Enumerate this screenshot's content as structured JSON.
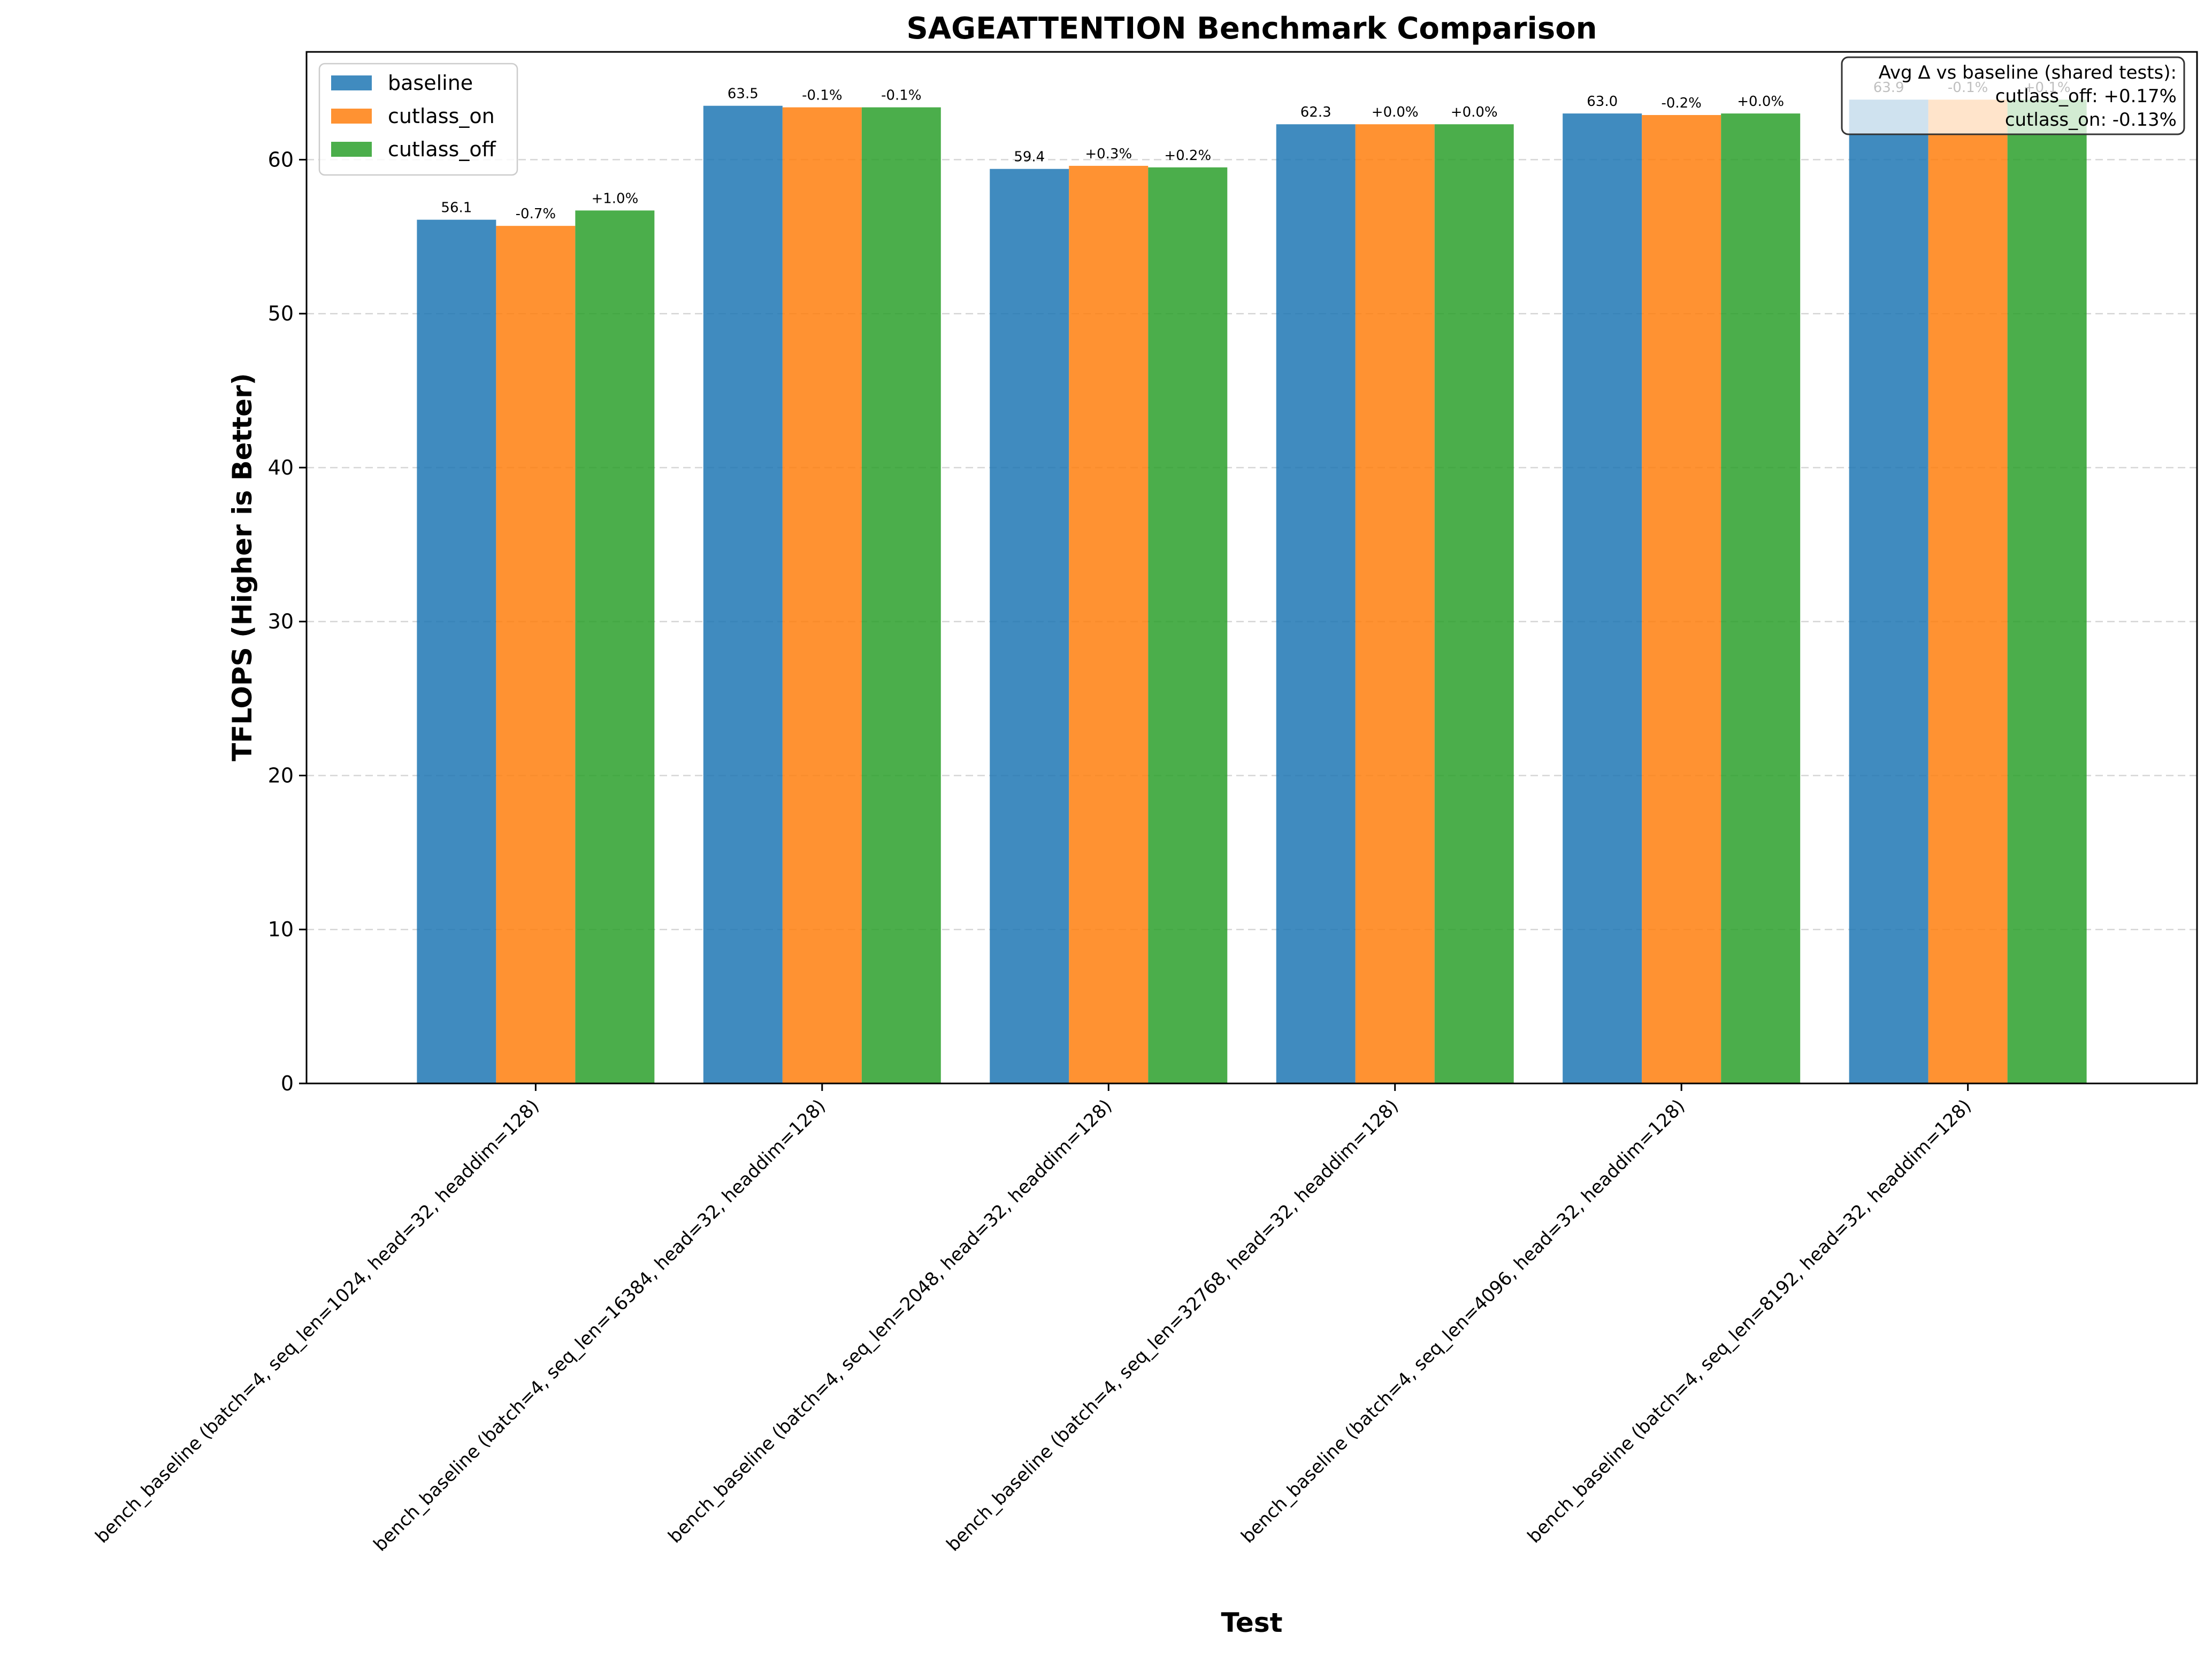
{
  "chart_data": {
    "type": "bar",
    "title": "SAGEATTENTION Benchmark Comparison",
    "xlabel": "Test",
    "ylabel": "TFLOPS (Higher is Better)",
    "ylim": [
      0,
      67
    ],
    "yticks": [
      0,
      10,
      20,
      30,
      40,
      50,
      60
    ],
    "grid": "y dashed",
    "legend_position": "upper-left",
    "categories": [
      "bench_baseline (batch=4, seq_len=1024, head=32, headdim=128)",
      "bench_baseline (batch=4, seq_len=16384, head=32, headdim=128)",
      "bench_baseline (batch=4, seq_len=2048, head=32, headdim=128)",
      "bench_baseline (batch=4, seq_len=32768, head=32, headdim=128)",
      "bench_baseline (batch=4, seq_len=4096, head=32, headdim=128)",
      "bench_baseline (batch=4, seq_len=8192, head=32, headdim=128)"
    ],
    "series": [
      {
        "name": "baseline",
        "color": "#1f77b4",
        "values": [
          56.1,
          63.5,
          59.4,
          62.3,
          63.0,
          63.9
        ],
        "labels": [
          "56.1",
          "63.5",
          "59.4",
          "62.3",
          "63.0",
          "63.9"
        ]
      },
      {
        "name": "cutlass_on",
        "color": "#ff7f0e",
        "values": [
          55.7,
          63.4,
          59.6,
          62.3,
          62.9,
          63.9
        ],
        "labels": [
          "-0.7%",
          "-0.1%",
          "+0.3%",
          "+0.0%",
          "-0.2%",
          "-0.1%"
        ]
      },
      {
        "name": "cutlass_off",
        "color": "#2ca02c",
        "values": [
          56.7,
          63.4,
          59.5,
          62.3,
          63.0,
          63.9
        ],
        "labels": [
          "+1.0%",
          "-0.1%",
          "+0.2%",
          "+0.0%",
          "+0.0%",
          "+0.1%"
        ]
      }
    ],
    "annotation": {
      "lines": [
        "Avg Δ vs baseline (shared tests):",
        "cutlass_off: +0.17%",
        "cutlass_on: -0.13%"
      ],
      "position": "top-right"
    }
  }
}
